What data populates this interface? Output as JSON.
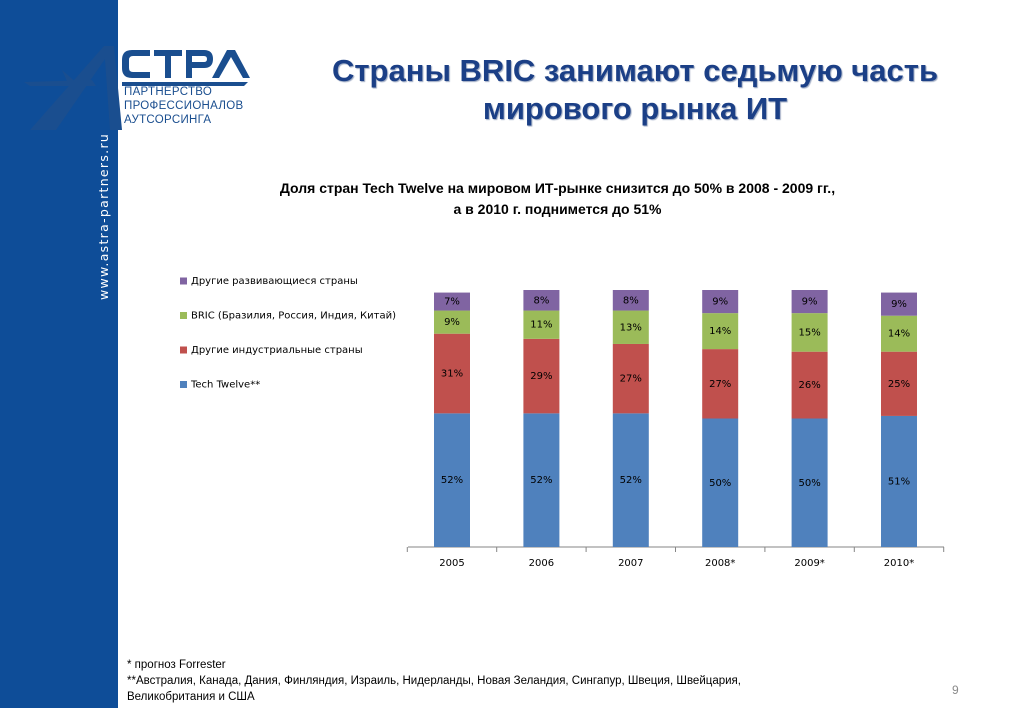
{
  "sidebar": {
    "url": "www.astra-partners.ru"
  },
  "logo": {
    "brand": "СТРА",
    "lines": [
      "ПАРТНЕРСТВО",
      "ПРОФЕССИОНАЛОВ",
      "АУТСОРСИНГА"
    ]
  },
  "slide": {
    "title_line1": "Страны BRIC занимают седьмую часть",
    "title_line2": "мирового рынка ИТ",
    "page_number": "9"
  },
  "footnotes": {
    "line1": "* прогноз Forrester",
    "line2": "**Австралия, Канада, Дания, Финляндия, Израиль, Нидерланды, Новая Зеландия, Сингапур, Швеция, Швейцария,",
    "line3": "Великобритания и США"
  },
  "colors": {
    "brand_blue": "#0e4d98",
    "title_blue": "#1b3f86"
  },
  "chart_data": {
    "type": "bar",
    "stacked": true,
    "title_line1": "Доля стран Tech Twelve на мировом ИТ-рынке снизится до 50% в 2008 - 2009 гг.,",
    "title_line2": "а в 2010 г. поднимется до 51%",
    "categories": [
      "2005",
      "2006",
      "2007",
      "2008*",
      "2009*",
      "2010*"
    ],
    "series": [
      {
        "name": "Tech Twelve**",
        "color": "#4f81bd",
        "values": [
          52,
          52,
          52,
          50,
          50,
          51
        ]
      },
      {
        "name": "Другие индустриальные страны",
        "color": "#c0504d",
        "values": [
          31,
          29,
          27,
          27,
          26,
          25
        ]
      },
      {
        "name": "BRIC (Бразилия, Россия, Индия, Китай)",
        "color": "#9bbb59",
        "values": [
          9,
          11,
          13,
          14,
          15,
          14
        ]
      },
      {
        "name": "Другие развивающиеся страны",
        "color": "#8064a2",
        "values": [
          7,
          8,
          8,
          9,
          9,
          9
        ]
      }
    ],
    "value_suffix": "%",
    "legend_position": "left",
    "grid": false
  }
}
